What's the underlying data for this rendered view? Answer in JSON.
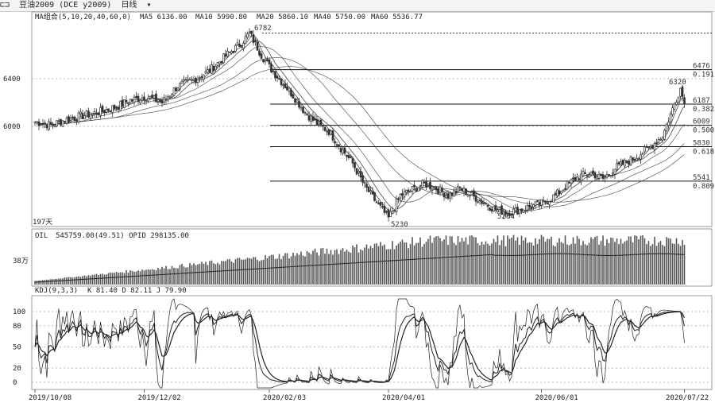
{
  "header": {
    "menu_glyph": "⊏⊐",
    "instrument": "豆油2009 (DCE y2009)",
    "period": "日线",
    "dropdown_glyph": "▾"
  },
  "indicators": {
    "ma_legend": "MA组合(5,10,20,40,60,0)",
    "ma5": "MA5 6136.00",
    "ma10": "MA10 5990.80",
    "ma20": "MA20 5860.10",
    "ma40": "MA40 5750.00",
    "ma60": "MA60 5536.77",
    "oi_legend": "OIL",
    "oi_values": "545759.00(49.51)  OPID 298135.00",
    "kdj_legend": "KDJ(9,3,3)",
    "kdj_values": "K 81.40  D 82.11  J 79.90",
    "period_count": "197天"
  },
  "axis": {
    "price_ticks": [
      "6400",
      "6000"
    ],
    "oi_tick": "38万",
    "kdj_ticks": [
      "100",
      "80",
      "50",
      "20",
      "0"
    ],
    "dates": [
      "2019/10/08",
      "2019/12/02",
      "2020/02/03",
      "2020/04/01",
      "2020/06/01",
      "2020/07/22"
    ]
  },
  "annotations": {
    "high_main": "6782",
    "low_main": "5230",
    "low_second": "5264",
    "recent_high": "6320"
  },
  "fib_levels": [
    {
      "price": "6476",
      "ratio": "0.191"
    },
    {
      "price": "6187",
      "ratio": "0.382"
    },
    {
      "price": "6009",
      "ratio": "0.500"
    },
    {
      "price": "5830",
      "ratio": "0.618"
    },
    {
      "price": "5541",
      "ratio": "0.809"
    }
  ],
  "colors": {
    "candle": "#333333",
    "grid": "#bbbbbb",
    "fib": "#111111",
    "bar": "#555555"
  },
  "chart_data": {
    "type": "candlestick",
    "y_ticks": [
      6000,
      6400
    ],
    "ylim": [
      5180,
      6860
    ],
    "x_dates": [
      "2019/10/08",
      "2019/12/02",
      "2020/02/03",
      "2020/04/01",
      "2020/06/01",
      "2020/07/22"
    ],
    "anchors": [
      [
        0,
        6040
      ],
      [
        8,
        6010
      ],
      [
        16,
        6060
      ],
      [
        24,
        6090
      ],
      [
        32,
        6120
      ],
      [
        40,
        6160
      ],
      [
        48,
        6220
      ],
      [
        56,
        6250
      ],
      [
        64,
        6200
      ],
      [
        72,
        6340
      ],
      [
        80,
        6390
      ],
      [
        88,
        6470
      ],
      [
        96,
        6590
      ],
      [
        104,
        6700
      ],
      [
        108,
        6782
      ],
      [
        114,
        6600
      ],
      [
        118,
        6500
      ],
      [
        124,
        6380
      ],
      [
        130,
        6260
      ],
      [
        136,
        6120
      ],
      [
        142,
        6020
      ],
      [
        148,
        5960
      ],
      [
        154,
        5820
      ],
      [
        160,
        5690
      ],
      [
        166,
        5500
      ],
      [
        172,
        5360
      ],
      [
        178,
        5230
      ],
      [
        184,
        5420
      ],
      [
        190,
        5470
      ],
      [
        196,
        5520
      ],
      [
        202,
        5480
      ],
      [
        208,
        5420
      ],
      [
        214,
        5480
      ],
      [
        220,
        5420
      ],
      [
        226,
        5360
      ],
      [
        232,
        5300
      ],
      [
        238,
        5280
      ],
      [
        244,
        5300
      ],
      [
        250,
        5330
      ],
      [
        256,
        5360
      ],
      [
        262,
        5420
      ],
      [
        268,
        5510
      ],
      [
        274,
        5580
      ],
      [
        280,
        5610
      ],
      [
        286,
        5560
      ],
      [
        292,
        5650
      ],
      [
        298,
        5700
      ],
      [
        304,
        5760
      ],
      [
        310,
        5830
      ],
      [
        316,
        5920
      ],
      [
        320,
        6100
      ],
      [
        325,
        6320
      ],
      [
        327,
        6187
      ]
    ],
    "series": [
      {
        "name": "MA5",
        "values": [
          6136.0
        ]
      },
      {
        "name": "MA10",
        "values": [
          5990.8
        ]
      },
      {
        "name": "MA20",
        "values": [
          5860.1
        ]
      },
      {
        "name": "MA40",
        "values": [
          5750.0
        ]
      },
      {
        "name": "MA60",
        "values": [
          5536.77
        ]
      }
    ],
    "open_interest": {
      "latest": 545759.0,
      "change": 49.51,
      "opid": 298135.0,
      "tick": "38万"
    },
    "kdj": {
      "K": 81.4,
      "D": 82.11,
      "J": 79.9,
      "ylim": [
        -8,
        118
      ],
      "y_ticks": [
        0,
        20,
        50,
        80,
        100
      ]
    }
  }
}
